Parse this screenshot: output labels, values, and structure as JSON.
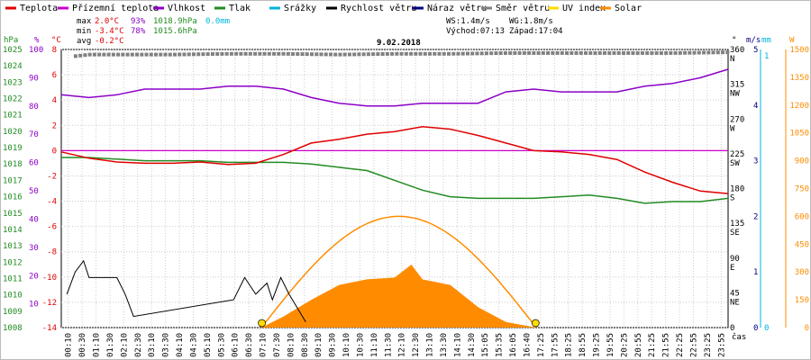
{
  "chart_data": {
    "type": "line",
    "title": "9.02.2018",
    "legend": [
      {
        "name": "Teplota",
        "color": "#e00000"
      },
      {
        "name": "Přízemní teplota",
        "color": "#c800c8"
      },
      {
        "name": "Vlhkost",
        "color": "#8c00c8"
      },
      {
        "name": "Tlak",
        "color": "#228b22"
      },
      {
        "name": "Srážky",
        "color": "#00b4dc"
      },
      {
        "name": "Rychlost větru",
        "color": "#000000"
      },
      {
        "name": "Náraz větru",
        "color": "#000080"
      },
      {
        "name": "Směr větru",
        "color": "#808080"
      },
      {
        "name": "UV index",
        "color": "#ffdc00"
      },
      {
        "name": "Solar",
        "color": "#ff8c00"
      }
    ],
    "stats": {
      "max_label": "max",
      "max_temp": "2.0°C",
      "max_hum": "93%",
      "max_press": "1018.9hPa",
      "max_rain": "0.0mm",
      "min_label": "min",
      "min_temp": "-3.4°C",
      "min_hum": "78%",
      "min_press": "1015.6hPa",
      "avg_label": "avg",
      "avg_temp": "-0.2°C",
      "ws": "WS:1.4m/s",
      "wg": "WG:1.8m/s",
      "sunrise": "Východ:07:13",
      "sunset": "Západ:17:04"
    },
    "axes": {
      "pressure": {
        "unit": "hPa",
        "min": 1008,
        "max": 1025,
        "ticks": [
          "1025",
          "1024",
          "1023",
          "1022",
          "1021",
          "1020",
          "1019",
          "1018",
          "1017",
          "1016",
          "1015",
          "1014",
          "1013",
          "1012",
          "1011",
          "1010",
          "1009",
          "1008"
        ]
      },
      "humidity": {
        "unit": "%",
        "ticks": [
          "100",
          "90",
          "80",
          "70",
          "60",
          "50",
          "40",
          "30",
          "20",
          "10"
        ]
      },
      "temperature": {
        "unit": "°C",
        "min": -14,
        "max": 8,
        "ticks": [
          "8",
          "6",
          "4",
          "2",
          "0",
          "-2",
          "-4",
          "-6",
          "-8",
          "-10",
          "-12",
          "-14"
        ]
      },
      "direction": {
        "ticks": [
          {
            "v": "360",
            "d": "N"
          },
          {
            "v": "315",
            "d": "NW"
          },
          {
            "v": "270",
            "d": "W"
          },
          {
            "v": "225",
            "d": "SW"
          },
          {
            "v": "180",
            "d": "S"
          },
          {
            "v": "135",
            "d": "SE"
          },
          {
            "v": "90",
            "d": "E"
          },
          {
            "v": "45",
            "d": "NE"
          },
          {
            "v": "0",
            "d": ""
          }
        ]
      },
      "wind": {
        "unit": "m/s",
        "ticks": [
          "5",
          "4",
          "3",
          "2",
          "1",
          "0"
        ]
      },
      "rain": {
        "unit": "mm",
        "ticks": [
          "1",
          "0"
        ]
      },
      "solar": {
        "unit": "W",
        "ticks": [
          "1500",
          "1350",
          "1200",
          "1050",
          "900",
          "750",
          "600",
          "450",
          "300",
          "150",
          "0"
        ]
      },
      "x": {
        "label": "čas",
        "ticks": [
          "00:10",
          "00:30",
          "01:10",
          "01:30",
          "02:10",
          "02:30",
          "03:10",
          "03:30",
          "04:10",
          "04:30",
          "05:10",
          "05:30",
          "06:10",
          "06:30",
          "07:10",
          "07:30",
          "08:10",
          "08:30",
          "09:10",
          "09:30",
          "10:10",
          "10:30",
          "11:10",
          "11:30",
          "12:10",
          "12:30",
          "13:10",
          "13:30",
          "14:10",
          "14:30",
          "15:05",
          "15:35",
          "16:05",
          "16:40",
          "17:25",
          "17:55",
          "18:25",
          "18:55",
          "19:25",
          "19:55",
          "20:25",
          "20:55",
          "21:25",
          "21:55",
          "22:25",
          "22:55",
          "23:25",
          "23:55"
        ]
      }
    },
    "temperature_series": {
      "x_hours": [
        0,
        1,
        2,
        3,
        4,
        5,
        6,
        7,
        8,
        9,
        10,
        11,
        12,
        13,
        14,
        15,
        16,
        17,
        18,
        19,
        20,
        21,
        22,
        23,
        24
      ],
      "values": [
        -0.1,
        -0.6,
        -0.9,
        -1.0,
        -1.0,
        -0.9,
        -1.1,
        -1.0,
        -0.3,
        0.6,
        0.9,
        1.3,
        1.5,
        1.9,
        1.7,
        1.2,
        0.6,
        0.0,
        -0.1,
        -0.3,
        -0.7,
        -1.7,
        -2.5,
        -3.2,
        -3.4
      ]
    },
    "ground_temperature": 0.0,
    "humidity_series": {
      "x_hours": [
        0,
        1,
        2,
        3,
        4,
        5,
        6,
        7,
        8,
        9,
        10,
        11,
        12,
        13,
        14,
        15,
        16,
        17,
        18,
        19,
        20,
        21,
        22,
        23,
        24
      ],
      "values": [
        84,
        83,
        84,
        86,
        86,
        86,
        87,
        87,
        86,
        83,
        81,
        80,
        80,
        81,
        81,
        81,
        85,
        86,
        85,
        85,
        85,
        87,
        88,
        90,
        93
      ]
    },
    "pressure_series": {
      "x_hours": [
        0,
        1,
        2,
        3,
        4,
        5,
        6,
        7,
        8,
        9,
        10,
        11,
        12,
        13,
        14,
        15,
        16,
        17,
        18,
        19,
        20,
        21,
        22,
        23,
        24
      ],
      "values": [
        1018.4,
        1018.4,
        1018.3,
        1018.2,
        1018.2,
        1018.2,
        1018.1,
        1018.1,
        1018.1,
        1018.0,
        1017.8,
        1017.6,
        1017.0,
        1016.4,
        1016.0,
        1015.9,
        1015.9,
        1015.9,
        1016.0,
        1016.1,
        1015.9,
        1015.6,
        1015.7,
        1015.7,
        1015.9
      ]
    },
    "direction_series": {
      "x_hours": [
        0,
        0.5,
        1,
        2,
        4,
        6,
        8,
        10,
        12,
        14,
        16,
        18,
        20,
        22,
        24
      ],
      "values": [
        350,
        352,
        354,
        354,
        354,
        355,
        355,
        354,
        355,
        355,
        356,
        356,
        356,
        356,
        357
      ]
    },
    "wind_speed_series": {
      "x_hours": [
        0.2,
        0.5,
        0.8,
        1.0,
        1.5,
        2.0,
        2.3,
        2.6,
        6.2,
        6.6,
        7.0,
        7.4,
        7.6,
        7.9,
        8.2,
        8.8
      ],
      "values": [
        0.6,
        1.0,
        1.2,
        0.9,
        0.9,
        0.9,
        0.6,
        0.2,
        0.5,
        0.9,
        0.6,
        0.8,
        0.5,
        0.9,
        0.6,
        0.1
      ]
    },
    "solar_series": {
      "x_hours": [
        7.2,
        8,
        9,
        10,
        11,
        12,
        12.6,
        13,
        14,
        15,
        16,
        17.1
      ],
      "values": [
        0,
        60,
        150,
        230,
        260,
        270,
        340,
        260,
        230,
        110,
        30,
        0
      ]
    },
    "solar_theoretical_max": 600
  }
}
